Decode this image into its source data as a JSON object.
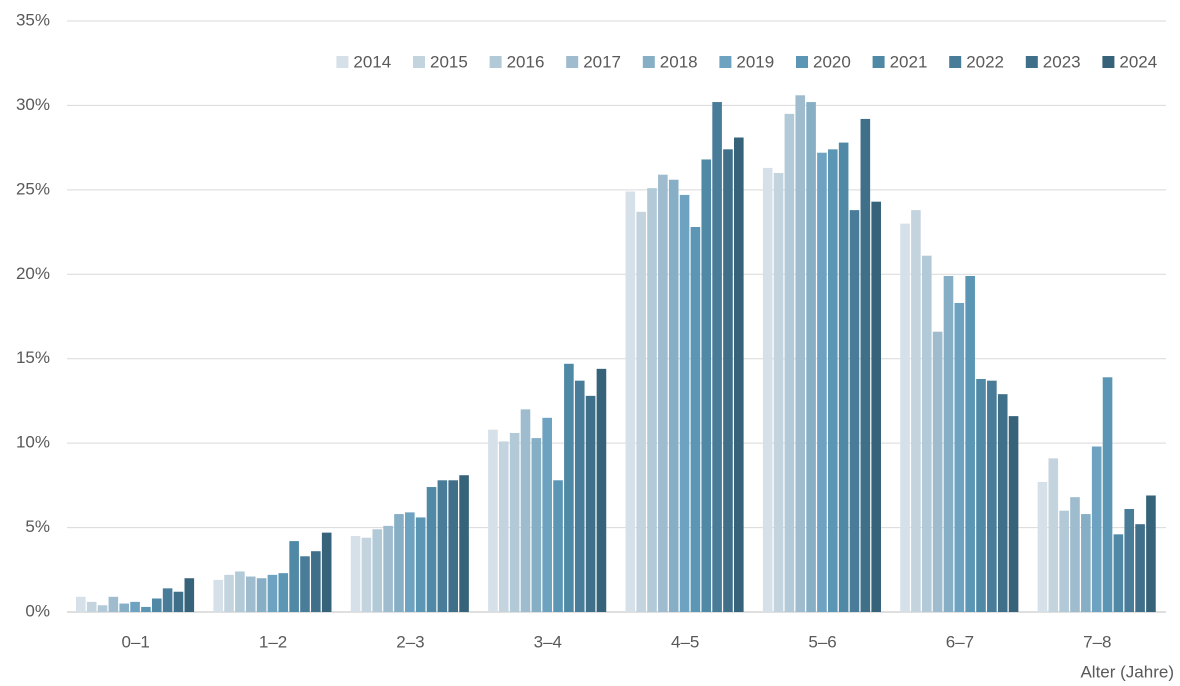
{
  "chart_data": {
    "type": "bar",
    "x_label": "Alter (Jahre)",
    "categories": [
      "0–1",
      "1–2",
      "2–3",
      "3–4",
      "4–5",
      "5–6",
      "6–7",
      "7–8"
    ],
    "series": [
      {
        "name": "2014",
        "color": "#d6e0e8",
        "values": [
          0.9,
          1.9,
          4.5,
          10.8,
          24.9,
          26.3,
          23.0,
          7.7
        ]
      },
      {
        "name": "2015",
        "color": "#c4d4df",
        "values": [
          0.6,
          2.2,
          4.4,
          10.1,
          23.7,
          26.0,
          23.8,
          9.1
        ]
      },
      {
        "name": "2016",
        "color": "#b2c9d7",
        "values": [
          0.4,
          2.4,
          4.9,
          10.6,
          25.1,
          29.5,
          21.1,
          6.0
        ]
      },
      {
        "name": "2017",
        "color": "#9ebccd",
        "values": [
          0.9,
          2.1,
          5.1,
          12.0,
          25.9,
          30.6,
          16.6,
          6.8
        ]
      },
      {
        "name": "2018",
        "color": "#86afc6",
        "values": [
          0.5,
          2.0,
          5.8,
          10.3,
          25.6,
          30.2,
          19.9,
          5.8
        ]
      },
      {
        "name": "2019",
        "color": "#6da3c0",
        "values": [
          0.6,
          2.2,
          5.9,
          11.5,
          24.7,
          27.2,
          18.3,
          9.8
        ]
      },
      {
        "name": "2020",
        "color": "#5b96b4",
        "values": [
          0.3,
          2.3,
          5.6,
          7.8,
          22.8,
          27.4,
          19.9,
          13.9
        ]
      },
      {
        "name": "2021",
        "color": "#4f89a5",
        "values": [
          0.8,
          4.2,
          7.4,
          14.7,
          26.8,
          27.8,
          13.8,
          4.6
        ]
      },
      {
        "name": "2022",
        "color": "#487c98",
        "values": [
          1.4,
          3.3,
          7.8,
          13.7,
          30.2,
          23.8,
          13.7,
          6.1
        ]
      },
      {
        "name": "2023",
        "color": "#3f6f89",
        "values": [
          1.2,
          3.6,
          7.8,
          12.8,
          27.4,
          29.2,
          12.9,
          5.2
        ]
      },
      {
        "name": "2024",
        "color": "#37637a",
        "values": [
          2.0,
          4.7,
          8.1,
          14.4,
          28.1,
          24.3,
          11.6,
          6.9
        ]
      }
    ],
    "ylim": [
      0,
      35
    ],
    "yticks": [
      {
        "value": 0,
        "label": "0%"
      },
      {
        "value": 5,
        "label": "5%"
      },
      {
        "value": 10,
        "label": "10%"
      },
      {
        "value": 15,
        "label": "15%"
      },
      {
        "value": 20,
        "label": "20%"
      },
      {
        "value": 25,
        "label": "25%"
      },
      {
        "value": 30,
        "label": "30%"
      },
      {
        "value": 35,
        "label": "35%"
      }
    ],
    "grid": true,
    "legend": "top-right"
  }
}
